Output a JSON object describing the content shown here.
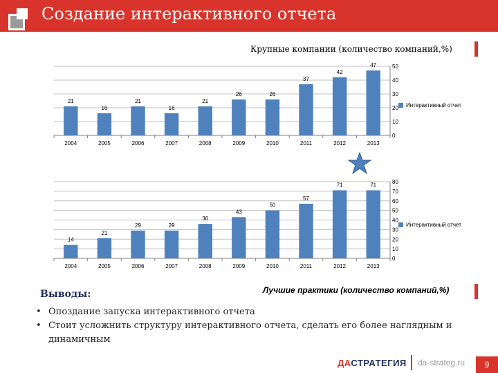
{
  "header": {
    "title": "Создание интерактивного отчета"
  },
  "chart_data": [
    {
      "type": "bar",
      "title": "Крупные компании (количество компаний,%)",
      "categories": [
        "2004",
        "2005",
        "2006",
        "2007",
        "2008",
        "2009",
        "2010",
        "2011",
        "2012",
        "2013"
      ],
      "series": [
        {
          "name": "Интерактивный отчет",
          "values": [
            21,
            16,
            21,
            16,
            21,
            26,
            26,
            37,
            42,
            47
          ]
        }
      ],
      "y_ticks": [
        "0",
        "10",
        "20",
        "30",
        "40",
        "50"
      ],
      "ylim": [
        0,
        50
      ],
      "color": "#4f81bd",
      "legend": "right"
    },
    {
      "type": "bar",
      "title": "Лучшие практики (количество компаний,%)",
      "categories": [
        "2004",
        "2005",
        "2006",
        "2007",
        "2008",
        "2009",
        "2010",
        "2011",
        "2012",
        "2013"
      ],
      "series": [
        {
          "name": "Интерактивный отчет",
          "values": [
            14,
            21,
            29,
            29,
            36,
            43,
            50,
            57,
            71,
            71
          ]
        }
      ],
      "y_ticks": [
        "0",
        "10",
        "20",
        "30",
        "40",
        "50",
        "60",
        "70",
        "80"
      ],
      "ylim": [
        0,
        80
      ],
      "color": "#4f81bd",
      "legend": "right"
    }
  ],
  "conclusions": {
    "heading": "Выводы:",
    "items": [
      "Опоздание запуска интерактивного отчета",
      "Стоит усложнить структуру интерактивного отчета, сделать его более наглядным и динамичным"
    ]
  },
  "footer": {
    "brand_prefix": "ДА",
    "brand_rest": "СТРАТЕГИЯ",
    "site": "da-strateg.ru",
    "page": "9"
  }
}
